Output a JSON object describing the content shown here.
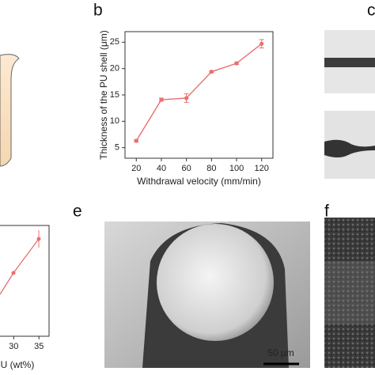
{
  "panels": [
    "b",
    "c",
    "e",
    "f"
  ],
  "scale_bar": "50 µm",
  "chart_data": [
    {
      "type": "line",
      "y_label": "Thickness of the PU shell (μm)",
      "x_label": "Withdrawal velocity (mm/min)",
      "x": [
        20,
        40,
        60,
        80,
        100,
        120
      ],
      "values": [
        6.3,
        14.1,
        14.4,
        19.4,
        21.0,
        24.7
      ],
      "errors": [
        0.2,
        0.3,
        0.8,
        0.2,
        0.2,
        0.8
      ],
      "color": "#e8706f",
      "xlim": [
        11,
        129
      ],
      "ylim": [
        3,
        27
      ],
      "xticks": [
        20,
        40,
        60,
        80,
        100,
        120
      ],
      "yticks": [
        5,
        10,
        15,
        20,
        25
      ]
    },
    {
      "type": "axis",
      "x_label": "U (wt%)",
      "xlim": [
        27.3,
        37
      ],
      "xticks": [
        30,
        35
      ]
    }
  ]
}
